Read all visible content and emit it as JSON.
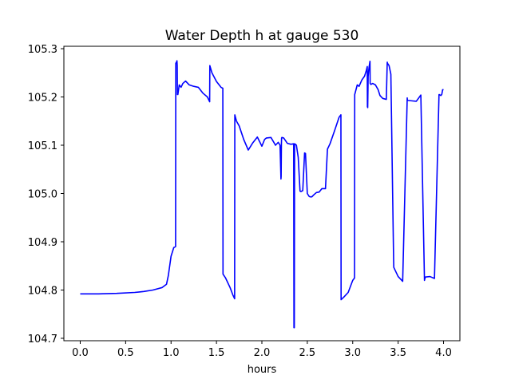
{
  "chart_data": {
    "type": "line",
    "title": "Water Depth h at gauge 530",
    "xlabel": "hours",
    "ylabel": "",
    "xlim": [
      -0.18,
      4.18
    ],
    "ylim": [
      104.695,
      105.305
    ],
    "xticks": [
      "0.0",
      "0.5",
      "1.0",
      "1.5",
      "2.0",
      "2.5",
      "3.0",
      "3.5",
      "4.0"
    ],
    "yticks": [
      "104.7",
      "104.8",
      "104.9",
      "105.0",
      "105.1",
      "105.2",
      "105.3"
    ],
    "grid": false,
    "legend": false,
    "series": [
      {
        "color": "#0000ff",
        "x": [
          0.0,
          0.2,
          0.4,
          0.6,
          0.65,
          0.7,
          0.8,
          0.9,
          0.95,
          0.97,
          1.0,
          1.03,
          1.05,
          1.052,
          1.06,
          1.065,
          1.068,
          1.07,
          1.075,
          1.09,
          1.11,
          1.13,
          1.16,
          1.2,
          1.25,
          1.3,
          1.35,
          1.4,
          1.425,
          1.427,
          1.45,
          1.5,
          1.55,
          1.57,
          1.572,
          1.6,
          1.65,
          1.68,
          1.7,
          1.702,
          1.72,
          1.75,
          1.8,
          1.85,
          1.9,
          1.95,
          2.0,
          2.03,
          2.05,
          2.1,
          2.15,
          2.18,
          2.2,
          2.21,
          2.212,
          2.215,
          2.217,
          2.22,
          2.24,
          2.28,
          2.32,
          2.35,
          2.353,
          2.357,
          2.36,
          2.362,
          2.38,
          2.4,
          2.42,
          2.43,
          2.45,
          2.47,
          2.48,
          2.5,
          2.52,
          2.53,
          2.55,
          2.57,
          2.6,
          2.63,
          2.66,
          2.7,
          2.72,
          2.722,
          2.75,
          2.8,
          2.85,
          2.87,
          2.872,
          2.9,
          2.95,
          3.0,
          3.02,
          3.022,
          3.05,
          3.07,
          3.1,
          3.13,
          3.15,
          3.16,
          3.162,
          3.165,
          3.17,
          3.18,
          3.19,
          3.192,
          3.2,
          3.22,
          3.25,
          3.28,
          3.3,
          3.33,
          3.37,
          3.38,
          3.382,
          3.4,
          3.42,
          3.45,
          3.452,
          3.5,
          3.55,
          3.6,
          3.602,
          3.65,
          3.7,
          3.75,
          3.79,
          3.792,
          3.8,
          3.85,
          3.9,
          3.95,
          3.952,
          3.97,
          3.98,
          3.99,
          4.0
        ],
        "y": [
          104.792,
          104.792,
          104.793,
          104.795,
          104.796,
          104.797,
          104.8,
          104.805,
          104.812,
          104.83,
          104.87,
          104.888,
          104.89,
          105.27,
          105.272,
          105.275,
          105.265,
          105.205,
          105.205,
          105.225,
          105.22,
          105.228,
          105.233,
          105.225,
          105.222,
          105.22,
          105.208,
          105.2,
          105.19,
          105.265,
          105.25,
          105.232,
          105.22,
          105.218,
          104.833,
          104.825,
          104.805,
          104.79,
          104.782,
          105.163,
          105.15,
          105.14,
          105.112,
          105.09,
          105.105,
          105.117,
          105.098,
          105.112,
          105.115,
          105.116,
          105.1,
          105.106,
          105.1,
          105.03,
          105.035,
          105.103,
          105.115,
          105.116,
          105.115,
          105.104,
          105.102,
          105.103,
          104.722,
          104.722,
          105.102,
          105.103,
          105.1,
          105.075,
          105.005,
          105.004,
          105.006,
          105.084,
          105.083,
          105.0,
          104.994,
          104.993,
          104.993,
          104.997,
          105.002,
          105.003,
          105.01,
          105.01,
          105.085,
          105.092,
          105.103,
          105.13,
          105.158,
          105.163,
          104.78,
          104.785,
          104.795,
          104.82,
          104.825,
          105.205,
          105.225,
          105.222,
          105.235,
          105.243,
          105.255,
          105.263,
          105.18,
          105.178,
          105.243,
          105.262,
          105.274,
          105.228,
          105.226,
          105.228,
          105.225,
          105.215,
          105.203,
          105.197,
          105.195,
          105.272,
          105.27,
          105.265,
          105.247,
          104.865,
          104.847,
          104.828,
          104.818,
          105.198,
          105.193,
          105.192,
          105.191,
          105.204,
          104.82,
          104.822,
          104.827,
          104.828,
          104.824,
          105.205,
          105.205,
          105.203,
          105.205,
          105.215,
          105.215
        ]
      }
    ]
  }
}
